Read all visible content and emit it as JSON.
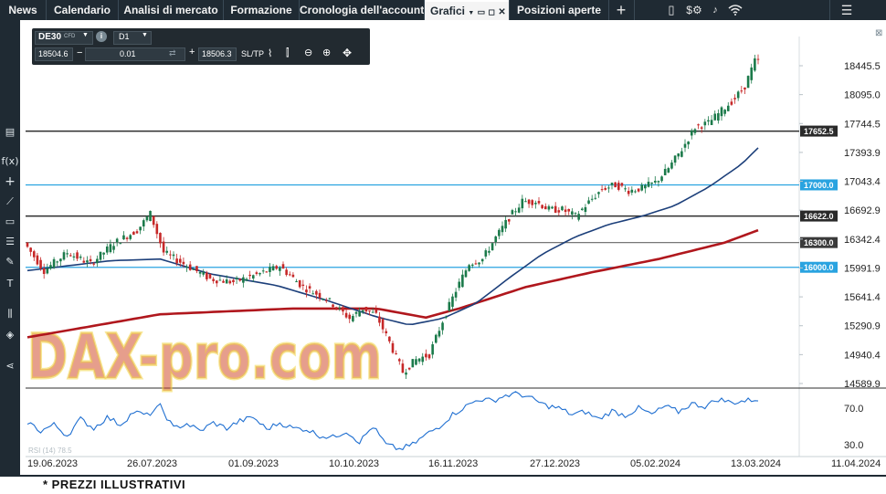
{
  "topbar": {
    "tabs": [
      {
        "label": "News",
        "active": false
      },
      {
        "label": "Calendario",
        "active": false
      },
      {
        "label": "Analisi di mercato",
        "active": false
      },
      {
        "label": "Formazione",
        "active": false
      },
      {
        "label": "Cronologia dell'account",
        "active": false
      },
      {
        "label": "Grafici",
        "active": true
      },
      {
        "label": "Posizioni aperte",
        "active": false
      }
    ],
    "icons": [
      "plus-icon",
      "layout-icon",
      "dollar-settings-icon",
      "wifi-icon",
      "menu-icon"
    ],
    "close_symbol": "⊠"
  },
  "sidebar": {
    "icons": [
      "chart-type-icon",
      "function-icon",
      "crosshair-icon",
      "trendline-icon",
      "rectangle-icon",
      "fibonacci-icon",
      "draw-icon",
      "text-icon",
      "indicators-icon",
      "layers-icon",
      "share-icon"
    ]
  },
  "toolbar": {
    "symbol": "DE30",
    "symbol_tag": "CFD",
    "timeframe": "D1",
    "bid": "18504.6",
    "quantity": "0.01",
    "ask": "18506.3",
    "sltp": "SL/TP"
  },
  "watermark": "DAX-pro.com",
  "footer": "* PREZZI ILLUSTRATIVI",
  "colors": {
    "bull": "#1b7a4a",
    "bear": "#c62828",
    "ma_fast": "#1c3f7a",
    "ma_slow": "#b0171d",
    "rsi": "#1f6fd1",
    "hline_dark": "#2d2d2d",
    "hline_blue": "#29a3e0",
    "watermark_red": "#d24e2e",
    "watermark_yellow": "#f1d340"
  },
  "chart_data": {
    "type": "candlestick",
    "price_axis": [
      "18445.5",
      "18095.0",
      "17744.5",
      "17393.9",
      "17043.4",
      "16692.9",
      "16342.4",
      "15991.9",
      "15641.4",
      "15290.9",
      "14940.4",
      "14589.9"
    ],
    "date_axis": [
      "19.06.2023",
      "26.07.2023",
      "01.09.2023",
      "10.10.2023",
      "16.11.2023",
      "27.12.2023",
      "05.02.2024",
      "13.03.2024",
      "11.04.2024"
    ],
    "horizontal_levels": [
      {
        "value": 17652.5,
        "label": "17652.5",
        "style": "dark"
      },
      {
        "value": 17000.0,
        "label": "17000.0",
        "style": "blue"
      },
      {
        "value": 16622.0,
        "label": "16622.0",
        "style": "dark"
      },
      {
        "value": 16300.0,
        "label": "16300.0",
        "style": "grey"
      },
      {
        "value": 16000.0,
        "label": "16000.0",
        "style": "blue"
      }
    ],
    "indicator": {
      "name": "RSI (14)",
      "value_label": "78.5",
      "axis": [
        "70.0",
        "30.0"
      ]
    },
    "price_path": [
      [
        0,
        16300
      ],
      [
        6,
        15960
      ],
      [
        13,
        16180
      ],
      [
        20,
        16040
      ],
      [
        27,
        16290
      ],
      [
        34,
        16450
      ],
      [
        38,
        16650
      ],
      [
        42,
        16180
      ],
      [
        49,
        16020
      ],
      [
        56,
        15860
      ],
      [
        63,
        15820
      ],
      [
        70,
        15910
      ],
      [
        77,
        16010
      ],
      [
        84,
        15760
      ],
      [
        91,
        15620
      ],
      [
        98,
        15380
      ],
      [
        102,
        15500
      ],
      [
        106,
        15420
      ],
      [
        110,
        15090
      ],
      [
        114,
        14730
      ],
      [
        118,
        14880
      ],
      [
        122,
        14940
      ],
      [
        126,
        15350
      ],
      [
        130,
        15720
      ],
      [
        134,
        16050
      ],
      [
        138,
        16100
      ],
      [
        142,
        16360
      ],
      [
        146,
        16600
      ],
      [
        150,
        16800
      ],
      [
        154,
        16800
      ],
      [
        158,
        16700
      ],
      [
        162,
        16700
      ],
      [
        166,
        16620
      ],
      [
        170,
        16790
      ],
      [
        174,
        16950
      ],
      [
        178,
        17000
      ],
      [
        182,
        16930
      ],
      [
        186,
        16960
      ],
      [
        190,
        17030
      ],
      [
        194,
        17200
      ],
      [
        198,
        17430
      ],
      [
        202,
        17700
      ],
      [
        206,
        17750
      ],
      [
        210,
        17900
      ],
      [
        214,
        18050
      ],
      [
        217,
        18200
      ],
      [
        220,
        18500
      ]
    ],
    "ma_slow": [
      [
        0,
        15150
      ],
      [
        40,
        15430
      ],
      [
        80,
        15500
      ],
      [
        105,
        15500
      ],
      [
        120,
        15390
      ],
      [
        130,
        15500
      ],
      [
        150,
        15760
      ],
      [
        170,
        15940
      ],
      [
        190,
        16100
      ],
      [
        210,
        16300
      ],
      [
        220,
        16450
      ]
    ],
    "ma_fast": [
      [
        0,
        15960
      ],
      [
        25,
        16080
      ],
      [
        40,
        16100
      ],
      [
        55,
        15920
      ],
      [
        75,
        15780
      ],
      [
        90,
        15600
      ],
      [
        105,
        15400
      ],
      [
        115,
        15300
      ],
      [
        125,
        15380
      ],
      [
        135,
        15560
      ],
      [
        145,
        15870
      ],
      [
        155,
        16160
      ],
      [
        165,
        16370
      ],
      [
        175,
        16520
      ],
      [
        185,
        16620
      ],
      [
        195,
        16750
      ],
      [
        205,
        16970
      ],
      [
        215,
        17250
      ],
      [
        220,
        17450
      ]
    ],
    "rsi_path": [
      [
        0,
        55
      ],
      [
        4,
        45
      ],
      [
        8,
        52
      ],
      [
        12,
        40
      ],
      [
        16,
        58
      ],
      [
        20,
        48
      ],
      [
        24,
        60
      ],
      [
        28,
        52
      ],
      [
        32,
        66
      ],
      [
        36,
        62
      ],
      [
        40,
        72
      ],
      [
        44,
        48
      ],
      [
        48,
        53
      ],
      [
        52,
        45
      ],
      [
        56,
        54
      ],
      [
        60,
        48
      ],
      [
        64,
        56
      ],
      [
        68,
        60
      ],
      [
        72,
        47
      ],
      [
        76,
        54
      ],
      [
        80,
        48
      ],
      [
        84,
        47
      ],
      [
        88,
        40
      ],
      [
        92,
        38
      ],
      [
        96,
        45
      ],
      [
        100,
        33
      ],
      [
        104,
        50
      ],
      [
        108,
        30
      ],
      [
        112,
        25
      ],
      [
        116,
        30
      ],
      [
        120,
        41
      ],
      [
        124,
        50
      ],
      [
        128,
        63
      ],
      [
        132,
        72
      ],
      [
        136,
        80
      ],
      [
        140,
        78
      ],
      [
        144,
        84
      ],
      [
        148,
        86
      ],
      [
        152,
        80
      ],
      [
        156,
        73
      ],
      [
        160,
        70
      ],
      [
        164,
        63
      ],
      [
        168,
        66
      ],
      [
        172,
        58
      ],
      [
        176,
        67
      ],
      [
        180,
        62
      ],
      [
        184,
        70
      ],
      [
        188,
        63
      ],
      [
        192,
        72
      ],
      [
        196,
        66
      ],
      [
        200,
        75
      ],
      [
        204,
        72
      ],
      [
        208,
        80
      ],
      [
        212,
        76
      ],
      [
        216,
        78
      ],
      [
        220,
        80
      ]
    ]
  }
}
